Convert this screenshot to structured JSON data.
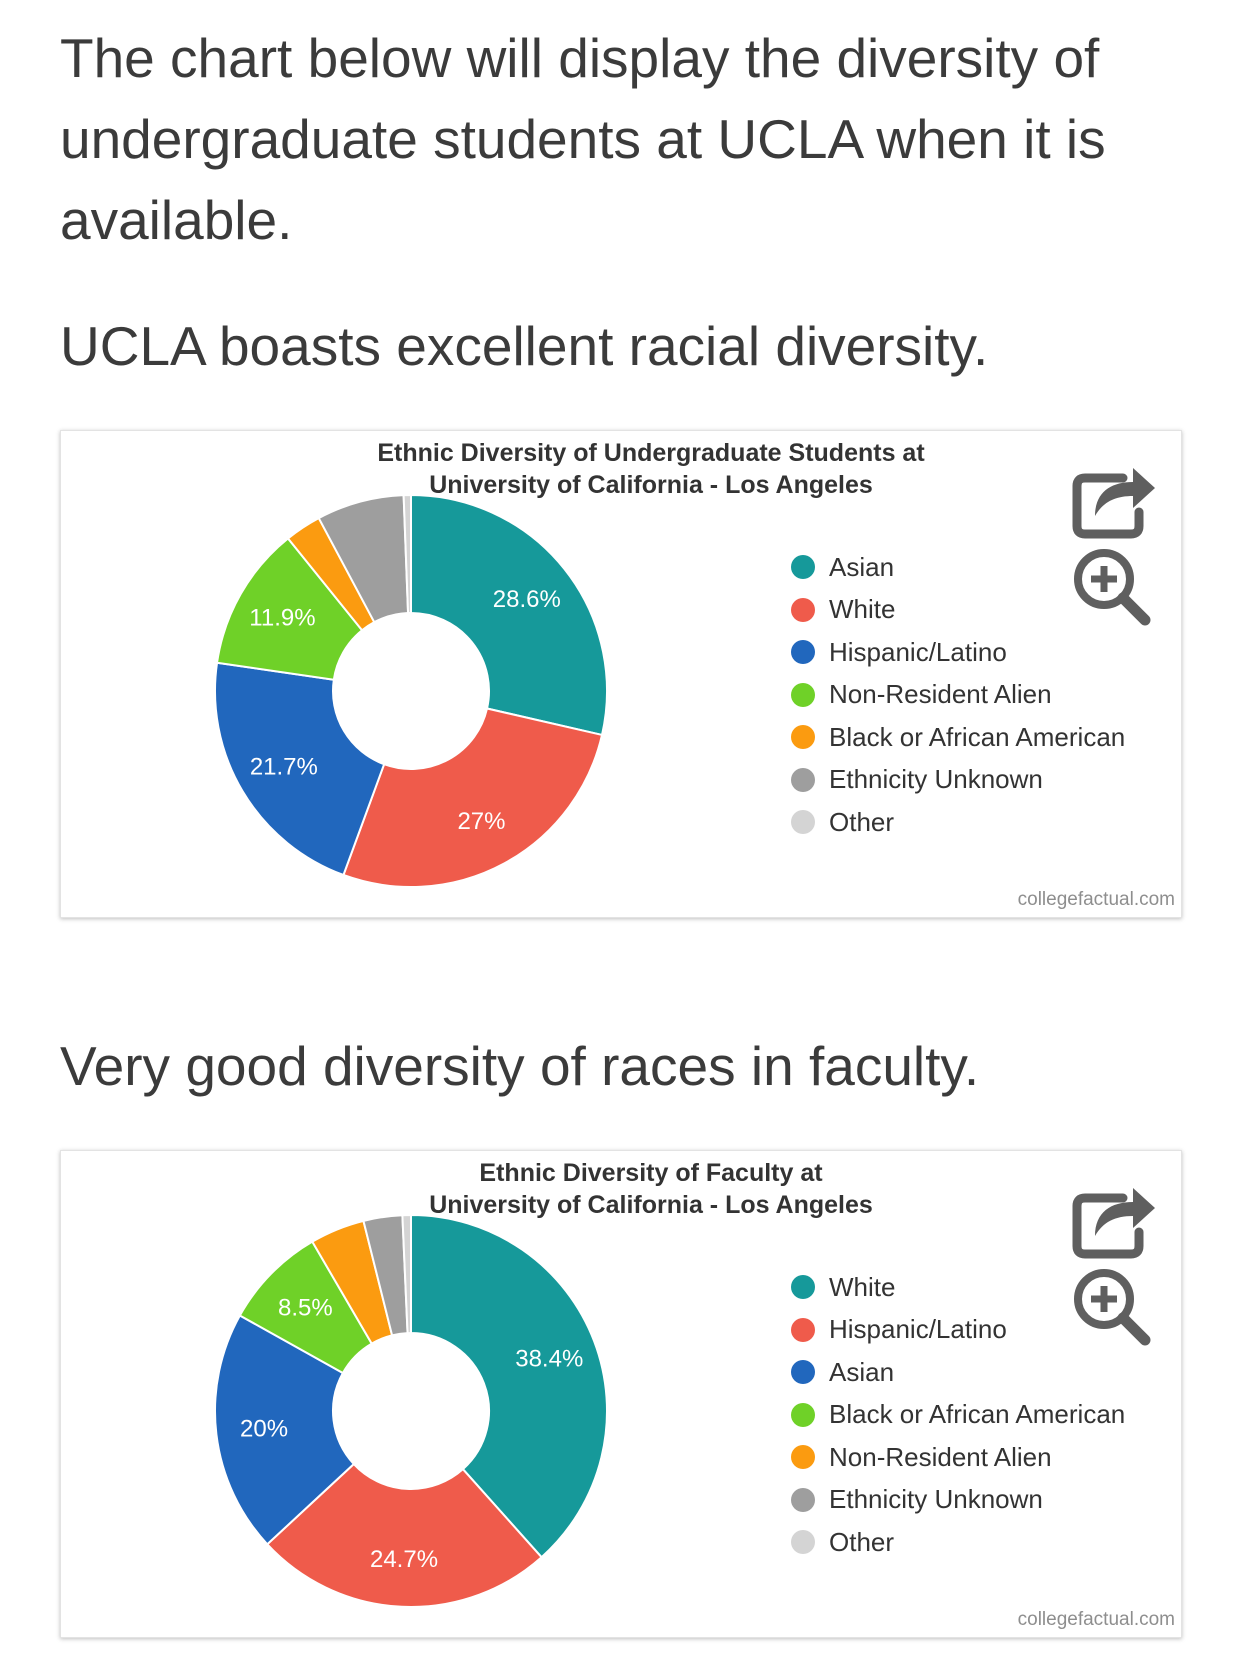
{
  "article": {
    "intro": "The chart below will display the diversity of undergraduate students at UCLA when it is available.",
    "heading1": "UCLA boasts excellent racial diversity.",
    "heading2": "Very good diversity of races in faculty."
  },
  "colors": {
    "teal": "#16999a",
    "red": "#ef5b4b",
    "blue": "#2167bd",
    "green": "#6fd128",
    "orange": "#fb9b10",
    "gray": "#9e9e9e",
    "lightgray": "#d4d4d4"
  },
  "icons": {
    "share": "share-icon",
    "zoom": "zoom-in-icon"
  },
  "chart_data": [
    {
      "type": "pie",
      "style": "donut",
      "title_line1": "Ethnic Diversity of Undergraduate Students at",
      "title_line2": "University of California - Los Angeles",
      "credit": "collegefactual.com",
      "legend_position": "right",
      "slices": [
        {
          "name": "Asian",
          "value": 28.6,
          "label": "28.6%",
          "color": "#16999a"
        },
        {
          "name": "White",
          "value": 27.0,
          "label": "27%",
          "color": "#ef5b4b"
        },
        {
          "name": "Hispanic/Latino",
          "value": 21.7,
          "label": "21.7%",
          "color": "#2167bd"
        },
        {
          "name": "Non-Resident Alien",
          "value": 11.9,
          "label": "11.9%",
          "color": "#6fd128"
        },
        {
          "name": "Black or African American",
          "value": 3.0,
          "label": "",
          "color": "#fb9b10"
        },
        {
          "name": "Ethnicity Unknown",
          "value": 7.2,
          "label": "",
          "color": "#9e9e9e"
        },
        {
          "name": "Other",
          "value": 0.6,
          "label": "",
          "color": "#d4d4d4"
        }
      ]
    },
    {
      "type": "pie",
      "style": "donut",
      "title_line1": "Ethnic Diversity of Faculty at",
      "title_line2": "University of California - Los Angeles",
      "credit": "collegefactual.com",
      "legend_position": "right",
      "slices": [
        {
          "name": "White",
          "value": 38.4,
          "label": "38.4%",
          "color": "#16999a"
        },
        {
          "name": "Hispanic/Latino",
          "value": 24.7,
          "label": "24.7%",
          "color": "#ef5b4b"
        },
        {
          "name": "Asian",
          "value": 20.0,
          "label": "20%",
          "color": "#2167bd"
        },
        {
          "name": "Black or African American",
          "value": 8.5,
          "label": "8.5%",
          "color": "#6fd128"
        },
        {
          "name": "Non-Resident Alien",
          "value": 4.5,
          "label": "",
          "color": "#fb9b10"
        },
        {
          "name": "Ethnicity Unknown",
          "value": 3.2,
          "label": "",
          "color": "#9e9e9e"
        },
        {
          "name": "Other",
          "value": 0.7,
          "label": "",
          "color": "#d4d4d4"
        }
      ]
    }
  ]
}
